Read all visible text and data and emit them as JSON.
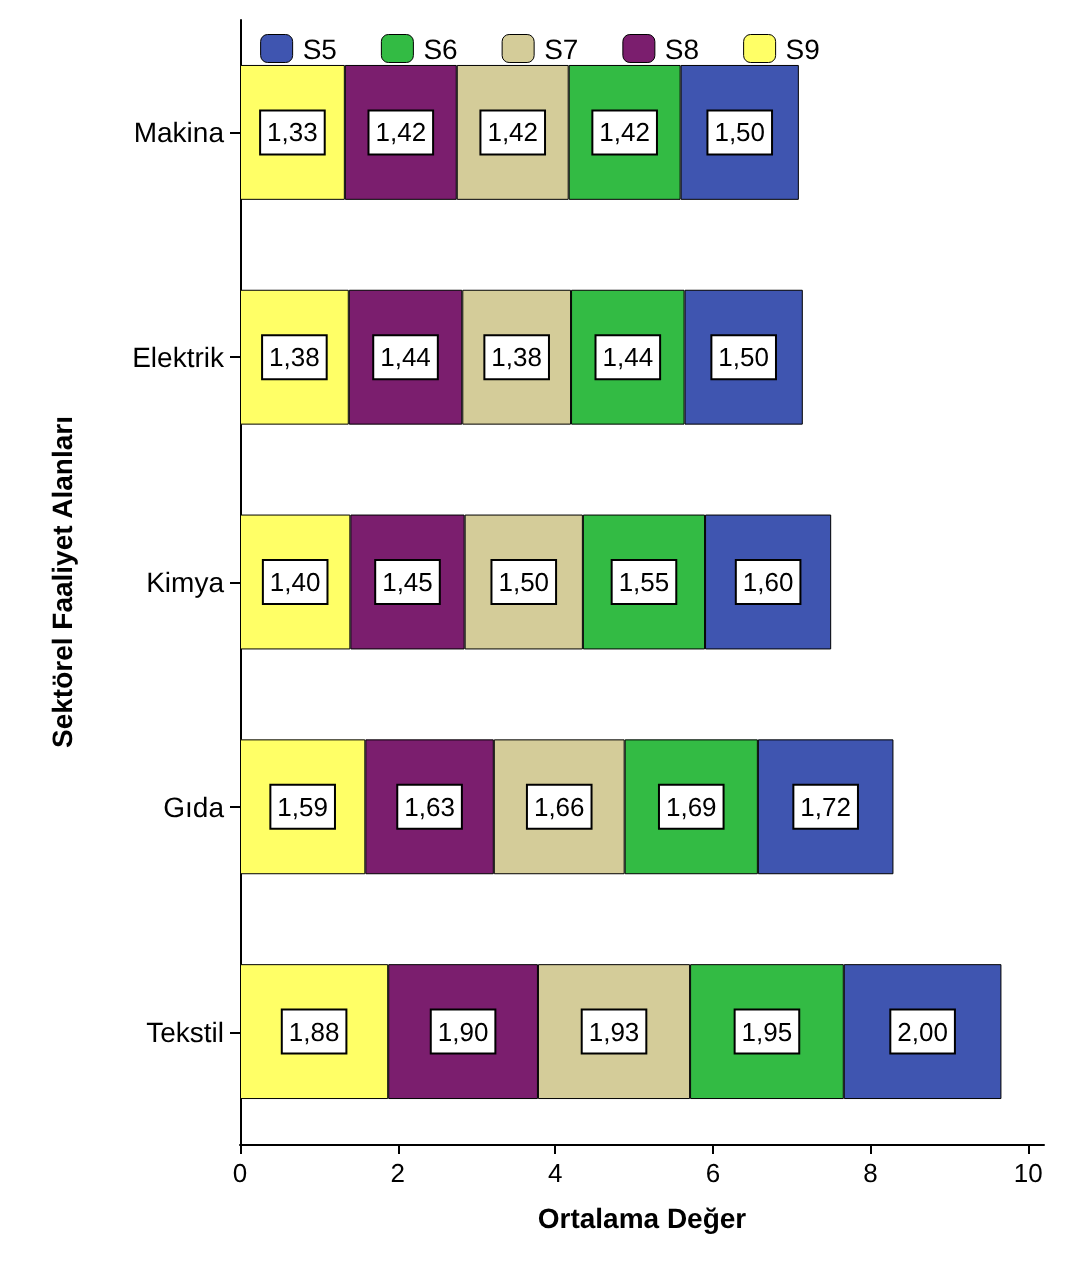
{
  "chart_data": {
    "type": "bar",
    "orientation": "horizontal",
    "stacked": true,
    "xlabel": "Ortalama Değer",
    "ylabel": "Sektörel Faaliyet Alanları",
    "categories": [
      "Makina",
      "Elektrik",
      "Kimya",
      "Gıda",
      "Tekstil"
    ],
    "xlim": [
      0,
      10.2
    ],
    "xticks": [
      0,
      2,
      4,
      6,
      8,
      10
    ],
    "grid": false,
    "legend": "top",
    "series": [
      {
        "name": "S9",
        "color": "#ffff66",
        "values": [
          1.33,
          1.38,
          1.4,
          1.59,
          1.88
        ],
        "value_labels": [
          "1,33",
          "1,38",
          "1,40",
          "1,59",
          "1,88"
        ]
      },
      {
        "name": "S8",
        "color": "#7b1e6e",
        "values": [
          1.42,
          1.44,
          1.45,
          1.63,
          1.9
        ],
        "value_labels": [
          "1,42",
          "1,44",
          "1,45",
          "1,63",
          "1,90"
        ]
      },
      {
        "name": "S7",
        "color": "#d4cc99",
        "values": [
          1.42,
          1.38,
          1.5,
          1.66,
          1.93
        ],
        "value_labels": [
          "1,42",
          "1,38",
          "1,50",
          "1,66",
          "1,93"
        ]
      },
      {
        "name": "S6",
        "color": "#33bb44",
        "values": [
          1.42,
          1.44,
          1.55,
          1.69,
          1.95
        ],
        "value_labels": [
          "1,42",
          "1,44",
          "1,55",
          "1,69",
          "1,95"
        ]
      },
      {
        "name": "S5",
        "color": "#3f55b0",
        "values": [
          1.5,
          1.5,
          1.6,
          1.72,
          2.0
        ],
        "value_labels": [
          "1,50",
          "1,50",
          "1,60",
          "1,72",
          "2,00"
        ]
      }
    ]
  }
}
